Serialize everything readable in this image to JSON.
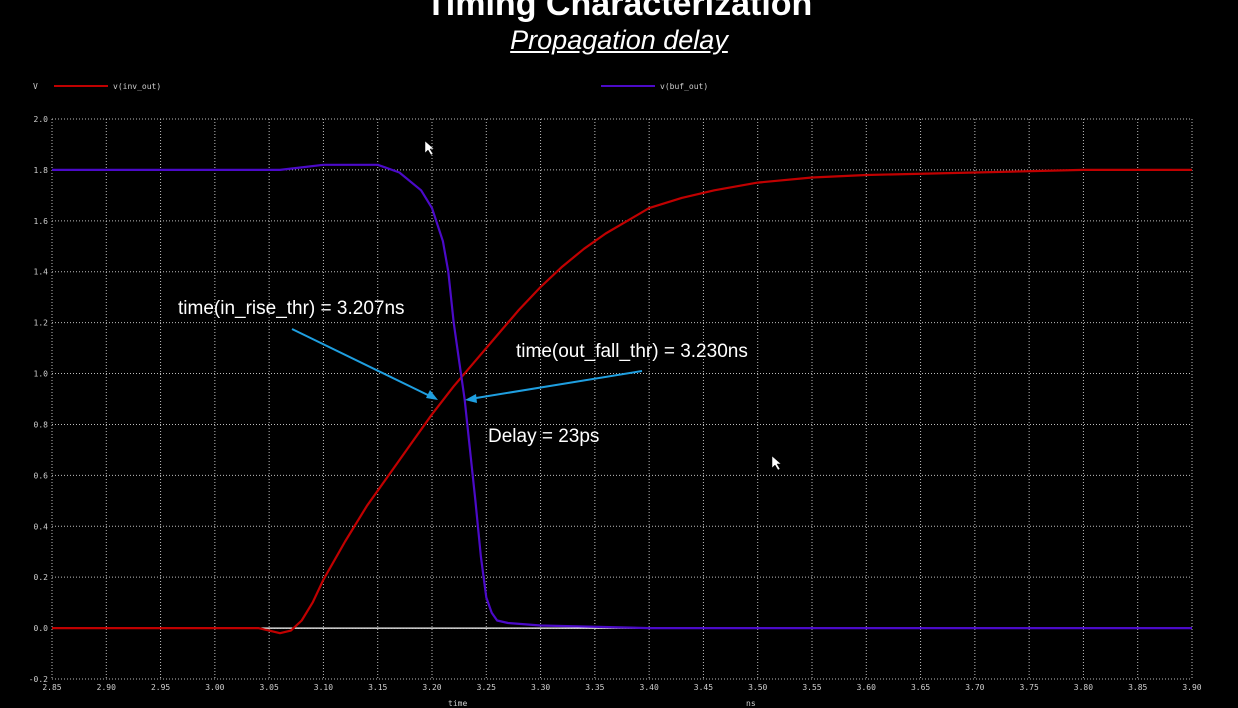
{
  "header": {
    "title": "Timing Characterization",
    "subtitle": "Propagation delay"
  },
  "colors": {
    "background": "#000000",
    "grid": "#bdbdbd",
    "series_inv_out": "#c00000",
    "series_buf_out": "#4b0ac8",
    "annotation_arrow": "#1f9fe0",
    "zero_line": "#ffffff"
  },
  "chart_data": {
    "type": "line",
    "title": "",
    "xlabel": "time",
    "x_unit": "ns",
    "ylabel": "V",
    "xlim": [
      2.85,
      3.9
    ],
    "ylim": [
      -0.2,
      2.0
    ],
    "grid": true,
    "legend_placement": "top",
    "x_ticks": [
      "2.85",
      "2.90",
      "2.95",
      "3.00",
      "3.05",
      "3.10",
      "3.15",
      "3.20",
      "3.25",
      "3.30",
      "3.35",
      "3.40",
      "3.45",
      "3.50",
      "3.55",
      "3.60",
      "3.65",
      "3.70",
      "3.75",
      "3.80",
      "3.85",
      "3.90"
    ],
    "y_ticks": [
      "-0.2",
      "0.0",
      "0.2",
      "0.4",
      "0.6",
      "0.8",
      "1.0",
      "1.2",
      "1.4",
      "1.6",
      "1.8",
      "2.0"
    ],
    "series": [
      {
        "name": "v(inv_out)",
        "color": "#c00000",
        "points": [
          [
            2.85,
            0.0
          ],
          [
            3.04,
            0.0
          ],
          [
            3.05,
            -0.01
          ],
          [
            3.06,
            -0.02
          ],
          [
            3.07,
            -0.01
          ],
          [
            3.08,
            0.03
          ],
          [
            3.09,
            0.1
          ],
          [
            3.1,
            0.19
          ],
          [
            3.12,
            0.34
          ],
          [
            3.14,
            0.48
          ],
          [
            3.16,
            0.6
          ],
          [
            3.18,
            0.72
          ],
          [
            3.2,
            0.84
          ],
          [
            3.22,
            0.95
          ],
          [
            3.24,
            1.05
          ],
          [
            3.26,
            1.15
          ],
          [
            3.28,
            1.25
          ],
          [
            3.3,
            1.34
          ],
          [
            3.32,
            1.42
          ],
          [
            3.34,
            1.49
          ],
          [
            3.36,
            1.55
          ],
          [
            3.38,
            1.6
          ],
          [
            3.4,
            1.65
          ],
          [
            3.43,
            1.69
          ],
          [
            3.46,
            1.72
          ],
          [
            3.5,
            1.75
          ],
          [
            3.55,
            1.77
          ],
          [
            3.6,
            1.78
          ],
          [
            3.7,
            1.79
          ],
          [
            3.8,
            1.8
          ],
          [
            3.9,
            1.8
          ]
        ]
      },
      {
        "name": "v(buf_out)",
        "color": "#4b0ac8",
        "points": [
          [
            2.85,
            1.8
          ],
          [
            3.06,
            1.8
          ],
          [
            3.08,
            1.81
          ],
          [
            3.1,
            1.82
          ],
          [
            3.13,
            1.82
          ],
          [
            3.15,
            1.82
          ],
          [
            3.17,
            1.79
          ],
          [
            3.19,
            1.72
          ],
          [
            3.2,
            1.65
          ],
          [
            3.21,
            1.52
          ],
          [
            3.215,
            1.4
          ],
          [
            3.22,
            1.2
          ],
          [
            3.225,
            1.05
          ],
          [
            3.23,
            0.9
          ],
          [
            3.235,
            0.7
          ],
          [
            3.24,
            0.5
          ],
          [
            3.245,
            0.28
          ],
          [
            3.25,
            0.12
          ],
          [
            3.255,
            0.06
          ],
          [
            3.26,
            0.03
          ],
          [
            3.27,
            0.02
          ],
          [
            3.3,
            0.01
          ],
          [
            3.4,
            0.0
          ],
          [
            3.9,
            0.0
          ]
        ]
      }
    ],
    "annotations": [
      {
        "text": "time(in_rise_thr) = 3.207ns",
        "arrow_to": [
          3.207,
          0.88
        ]
      },
      {
        "text": "time(out_fall_thr) = 3.230ns",
        "arrow_to": [
          3.23,
          0.89
        ]
      },
      {
        "text": "Delay = 23ps"
      }
    ]
  }
}
